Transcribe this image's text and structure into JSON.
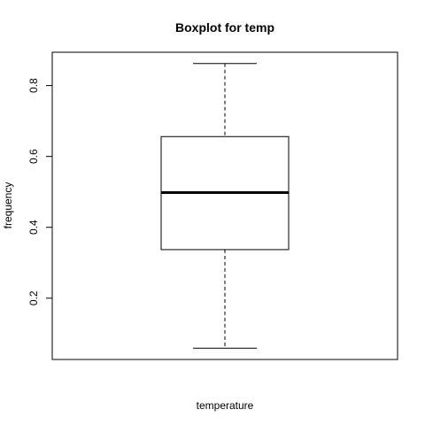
{
  "chart_data": {
    "type": "boxplot",
    "title": "Boxplot for temp",
    "xlabel": "temperature",
    "ylabel": "frequency",
    "ylim": [
      0.027,
      0.894
    ],
    "yticks": [
      {
        "value": 0.2,
        "label": "0.2"
      },
      {
        "value": 0.4,
        "label": "0.4"
      },
      {
        "value": 0.6,
        "label": "0.6"
      },
      {
        "value": 0.8,
        "label": "0.8"
      }
    ],
    "box": {
      "min": 0.059,
      "q1": 0.337,
      "median": 0.498,
      "q3": 0.656,
      "max": 0.862
    },
    "colors": {
      "stroke": "#000000",
      "background": "#ffffff"
    }
  }
}
